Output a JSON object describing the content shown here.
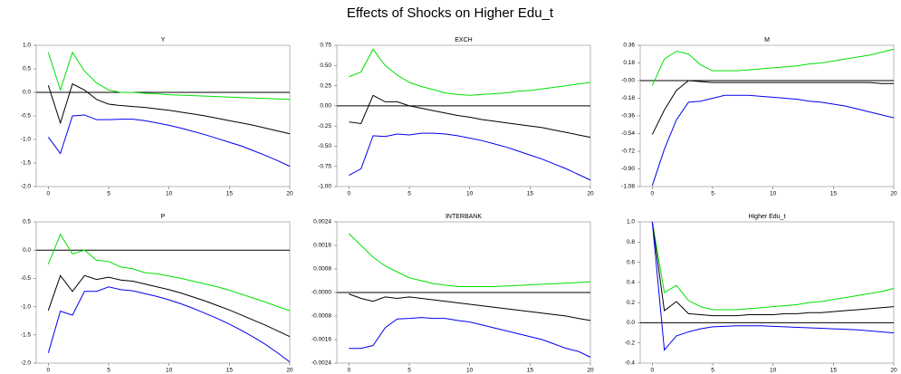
{
  "title": "Effects of Shocks on Higher Edu_t",
  "chart_data": [
    {
      "type": "line",
      "title": "Y",
      "x": [
        0,
        1,
        2,
        3,
        4,
        5,
        6,
        7,
        8,
        9,
        10,
        11,
        12,
        13,
        14,
        15,
        16,
        17,
        18,
        19,
        20
      ],
      "xlim": [
        -1,
        20
      ],
      "xticks": [
        0,
        5,
        10,
        15,
        20
      ],
      "ylim": [
        -2.0,
        1.0
      ],
      "yticks": [
        {
          "value": -2.0,
          "label": "-2.0"
        },
        {
          "value": -1.5,
          "label": "-1.5"
        },
        {
          "value": -1.0,
          "label": "-1.0"
        },
        {
          "value": -0.5,
          "label": "-0.5"
        },
        {
          "value": 0,
          "label": "0.0"
        },
        {
          "value": 0.5,
          "label": "0.5"
        },
        {
          "value": 1.0,
          "label": "1.0"
        }
      ],
      "series": [
        {
          "color": "#00e000",
          "values": [
            0.85,
            0.05,
            0.85,
            0.45,
            0.2,
            0.05,
            0.0,
            0.0,
            -0.02,
            -0.03,
            -0.05,
            -0.06,
            -0.07,
            -0.08,
            -0.09,
            -0.1,
            -0.11,
            -0.12,
            -0.13,
            -0.14,
            -0.15
          ]
        },
        {
          "color": "#000000",
          "values": [
            0.15,
            -0.65,
            0.18,
            0.05,
            -0.15,
            -0.25,
            -0.28,
            -0.3,
            -0.32,
            -0.35,
            -0.38,
            -0.42,
            -0.46,
            -0.5,
            -0.55,
            -0.6,
            -0.65,
            -0.7,
            -0.76,
            -0.82,
            -0.88
          ]
        },
        {
          "color": "#0000ee",
          "values": [
            -0.95,
            -1.3,
            -0.5,
            -0.48,
            -0.58,
            -0.58,
            -0.57,
            -0.57,
            -0.6,
            -0.65,
            -0.7,
            -0.76,
            -0.83,
            -0.9,
            -0.98,
            -1.06,
            -1.14,
            -1.24,
            -1.34,
            -1.45,
            -1.57
          ]
        }
      ]
    },
    {
      "type": "line",
      "title": "EXCH",
      "x": [
        0,
        1,
        2,
        3,
        4,
        5,
        6,
        7,
        8,
        9,
        10,
        11,
        12,
        13,
        14,
        15,
        16,
        17,
        18,
        19,
        20
      ],
      "xlim": [
        -1,
        20
      ],
      "xticks": [
        0,
        5,
        10,
        15,
        20
      ],
      "ylim": [
        -1.0,
        0.75
      ],
      "yticks": [
        {
          "value": -1.0,
          "label": "-1.00"
        },
        {
          "value": -0.75,
          "label": "-0.75"
        },
        {
          "value": -0.5,
          "label": "-0.50"
        },
        {
          "value": -0.25,
          "label": "-0.25"
        },
        {
          "value": 0,
          "label": "0.00"
        },
        {
          "value": 0.25,
          "label": "0.25"
        },
        {
          "value": 0.5,
          "label": "0.50"
        },
        {
          "value": 0.75,
          "label": "0.75"
        }
      ],
      "series": [
        {
          "color": "#00e000",
          "values": [
            0.36,
            0.42,
            0.7,
            0.5,
            0.38,
            0.29,
            0.24,
            0.2,
            0.16,
            0.14,
            0.13,
            0.14,
            0.15,
            0.16,
            0.18,
            0.19,
            0.21,
            0.23,
            0.25,
            0.27,
            0.29
          ]
        },
        {
          "color": "#000000",
          "values": [
            -0.2,
            -0.22,
            0.13,
            0.05,
            0.05,
            0.0,
            -0.03,
            -0.06,
            -0.09,
            -0.12,
            -0.14,
            -0.17,
            -0.19,
            -0.21,
            -0.23,
            -0.25,
            -0.27,
            -0.3,
            -0.33,
            -0.36,
            -0.39
          ]
        },
        {
          "color": "#0000ee",
          "values": [
            -0.86,
            -0.78,
            -0.37,
            -0.38,
            -0.35,
            -0.36,
            -0.34,
            -0.34,
            -0.35,
            -0.37,
            -0.4,
            -0.43,
            -0.47,
            -0.51,
            -0.56,
            -0.61,
            -0.66,
            -0.72,
            -0.78,
            -0.85,
            -0.92
          ]
        }
      ]
    },
    {
      "type": "line",
      "title": "M",
      "x": [
        0,
        1,
        2,
        3,
        4,
        5,
        6,
        7,
        8,
        9,
        10,
        11,
        12,
        13,
        14,
        15,
        16,
        17,
        18,
        19,
        20
      ],
      "xlim": [
        -1,
        20
      ],
      "xticks": [
        0,
        5,
        10,
        15,
        20
      ],
      "ylim": [
        -1.08,
        0.36
      ],
      "yticks": [
        {
          "value": -1.08,
          "label": "-1.08"
        },
        {
          "value": -0.9,
          "label": "-0.90"
        },
        {
          "value": -0.72,
          "label": "-0.72"
        },
        {
          "value": -0.54,
          "label": "-0.54"
        },
        {
          "value": -0.36,
          "label": "-0.36"
        },
        {
          "value": -0.18,
          "label": "-0.18"
        },
        {
          "value": 0,
          "label": "-0.00"
        },
        {
          "value": 0.18,
          "label": "0.18"
        },
        {
          "value": 0.36,
          "label": "0.36"
        }
      ],
      "series": [
        {
          "color": "#00e000",
          "values": [
            -0.05,
            0.22,
            0.3,
            0.27,
            0.16,
            0.1,
            0.1,
            0.1,
            0.11,
            0.12,
            0.13,
            0.14,
            0.15,
            0.17,
            0.18,
            0.2,
            0.22,
            0.24,
            0.26,
            0.29,
            0.32
          ]
        },
        {
          "color": "#000000",
          "values": [
            -0.55,
            -0.3,
            -0.1,
            0.0,
            -0.01,
            -0.02,
            -0.02,
            -0.02,
            -0.02,
            -0.02,
            -0.02,
            -0.02,
            -0.02,
            -0.02,
            -0.02,
            -0.02,
            -0.02,
            -0.02,
            -0.02,
            -0.03,
            -0.03
          ]
        },
        {
          "color": "#0000ee",
          "values": [
            -1.07,
            -0.7,
            -0.4,
            -0.22,
            -0.21,
            -0.18,
            -0.15,
            -0.15,
            -0.15,
            -0.16,
            -0.17,
            -0.18,
            -0.19,
            -0.21,
            -0.22,
            -0.24,
            -0.26,
            -0.29,
            -0.32,
            -0.35,
            -0.38
          ]
        }
      ]
    },
    {
      "type": "line",
      "title": "P",
      "x": [
        0,
        1,
        2,
        3,
        4,
        5,
        6,
        7,
        8,
        9,
        10,
        11,
        12,
        13,
        14,
        15,
        16,
        17,
        18,
        19,
        20
      ],
      "xlim": [
        -1,
        20
      ],
      "xticks": [
        0,
        5,
        10,
        15,
        20
      ],
      "ylim": [
        -2.0,
        0.5
      ],
      "yticks": [
        {
          "value": -2.0,
          "label": "-2.0"
        },
        {
          "value": -1.5,
          "label": "-1.5"
        },
        {
          "value": -1.0,
          "label": "-1.0"
        },
        {
          "value": -0.5,
          "label": "-0.5"
        },
        {
          "value": 0,
          "label": "0.0"
        },
        {
          "value": 0.5,
          "label": "0.5"
        }
      ],
      "series": [
        {
          "color": "#00e000",
          "values": [
            -0.25,
            0.28,
            -0.07,
            0.0,
            -0.18,
            -0.2,
            -0.3,
            -0.33,
            -0.4,
            -0.42,
            -0.46,
            -0.5,
            -0.55,
            -0.6,
            -0.65,
            -0.71,
            -0.78,
            -0.85,
            -0.92,
            -1.0,
            -1.07
          ]
        },
        {
          "color": "#000000",
          "values": [
            -1.07,
            -0.45,
            -0.73,
            -0.45,
            -0.52,
            -0.48,
            -0.53,
            -0.55,
            -0.6,
            -0.65,
            -0.7,
            -0.76,
            -0.83,
            -0.9,
            -0.98,
            -1.06,
            -1.15,
            -1.24,
            -1.33,
            -1.43,
            -1.53
          ]
        },
        {
          "color": "#0000ee",
          "values": [
            -1.82,
            -1.08,
            -1.15,
            -0.73,
            -0.73,
            -0.65,
            -0.7,
            -0.72,
            -0.77,
            -0.82,
            -0.88,
            -0.95,
            -1.03,
            -1.12,
            -1.21,
            -1.31,
            -1.42,
            -1.54,
            -1.67,
            -1.82,
            -1.98
          ]
        }
      ]
    },
    {
      "type": "line",
      "title": "INTERBANK",
      "x": [
        0,
        1,
        2,
        3,
        4,
        5,
        6,
        7,
        8,
        9,
        10,
        11,
        12,
        13,
        14,
        15,
        16,
        17,
        18,
        19,
        20
      ],
      "xlim": [
        -1,
        20
      ],
      "xticks": [
        0,
        5,
        10,
        15,
        20
      ],
      "ylim": [
        -0.0024,
        0.0024
      ],
      "yticks": [
        -0.0024,
        -0.0016,
        -0.0008,
        {
          "value": 0,
          "label": "-0.0000"
        },
        0.0008,
        0.0016,
        0.0024
      ],
      "series": [
        {
          "color": "#00e000",
          "values": [
            0.002,
            0.0016,
            0.0012,
            0.0009,
            0.0007,
            0.0005,
            0.0004,
            0.0003,
            0.00025,
            0.0002,
            0.0002,
            0.0002,
            0.0002,
            0.00022,
            0.00024,
            0.00026,
            0.00028,
            0.0003,
            0.00032,
            0.00034,
            0.00036
          ]
        },
        {
          "color": "#000000",
          "values": [
            -5e-05,
            -0.0002,
            -0.0003,
            -0.00015,
            -0.0002,
            -0.00015,
            -0.0002,
            -0.00025,
            -0.0003,
            -0.00035,
            -0.0004,
            -0.00045,
            -0.0005,
            -0.00055,
            -0.0006,
            -0.00065,
            -0.0007,
            -0.00075,
            -0.0008,
            -0.00088,
            -0.00095
          ]
        },
        {
          "color": "#0000ee",
          "values": [
            -0.0019,
            -0.0019,
            -0.0018,
            -0.0012,
            -0.0009,
            -0.00088,
            -0.00085,
            -0.00088,
            -0.00088,
            -0.00095,
            -0.001,
            -0.0011,
            -0.0012,
            -0.0013,
            -0.0014,
            -0.0015,
            -0.0016,
            -0.00175,
            -0.0019,
            -0.002,
            -0.0022
          ]
        }
      ]
    },
    {
      "type": "line",
      "title": "Higher Edu_t",
      "x": [
        0,
        1,
        2,
        3,
        4,
        5,
        6,
        7,
        8,
        9,
        10,
        11,
        12,
        13,
        14,
        15,
        16,
        17,
        18,
        19,
        20
      ],
      "xlim": [
        -1,
        20
      ],
      "xticks": [
        0,
        5,
        10,
        15,
        20
      ],
      "ylim": [
        -0.4,
        1.0
      ],
      "yticks": [
        -0.4,
        -0.2,
        {
          "value": 0,
          "label": "0.0"
        },
        0.2,
        0.4,
        0.6,
        0.8,
        {
          "value": 1.0,
          "label": "1.0"
        }
      ],
      "series": [
        {
          "color": "#00e000",
          "values": [
            1.0,
            0.3,
            0.37,
            0.22,
            0.16,
            0.13,
            0.13,
            0.13,
            0.14,
            0.15,
            0.16,
            0.17,
            0.18,
            0.2,
            0.21,
            0.23,
            0.25,
            0.27,
            0.29,
            0.31,
            0.34
          ]
        },
        {
          "color": "#000000",
          "values": [
            1.0,
            0.12,
            0.21,
            0.09,
            0.08,
            0.07,
            0.07,
            0.07,
            0.08,
            0.08,
            0.08,
            0.09,
            0.09,
            0.1,
            0.1,
            0.11,
            0.12,
            0.13,
            0.14,
            0.15,
            0.16
          ]
        },
        {
          "color": "#0000ee",
          "values": [
            1.0,
            -0.27,
            -0.13,
            -0.09,
            -0.06,
            -0.04,
            -0.035,
            -0.03,
            -0.03,
            -0.03,
            -0.035,
            -0.04,
            -0.045,
            -0.05,
            -0.055,
            -0.06,
            -0.065,
            -0.07,
            -0.08,
            -0.09,
            -0.1
          ]
        }
      ]
    }
  ]
}
